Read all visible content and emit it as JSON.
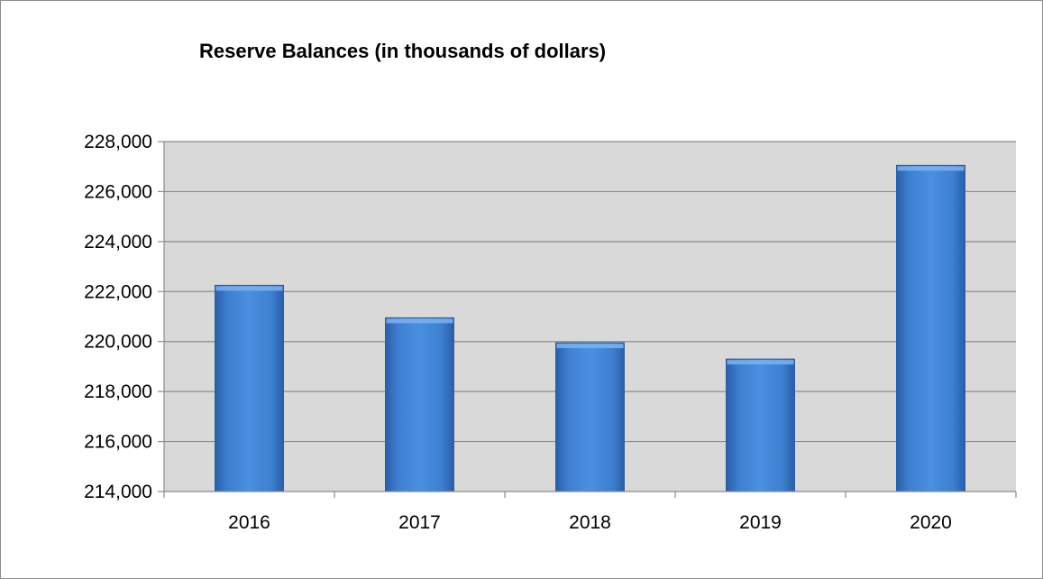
{
  "chart_data": {
    "type": "bar",
    "title": "Reserve Balances (in thousands of dollars)",
    "xlabel": "",
    "ylabel": "",
    "categories": [
      "2016",
      "2017",
      "2018",
      "2019",
      "2020"
    ],
    "values": [
      222250,
      220950,
      219950,
      219300,
      227050
    ],
    "ylim": [
      214000,
      228000
    ],
    "yticks": [
      214000,
      216000,
      218000,
      220000,
      222000,
      224000,
      226000,
      228000
    ],
    "ytick_labels": [
      "214,000",
      "216,000",
      "218,000",
      "220,000",
      "222,000",
      "224,000",
      "226,000",
      "228,000"
    ],
    "grid": true,
    "legend": "none",
    "colors": {
      "bar": "#3f7fcf",
      "bar_edge": "#2c5f9e",
      "plot_background": "#d9d9d9",
      "gridline": "#8c8c8c"
    }
  }
}
